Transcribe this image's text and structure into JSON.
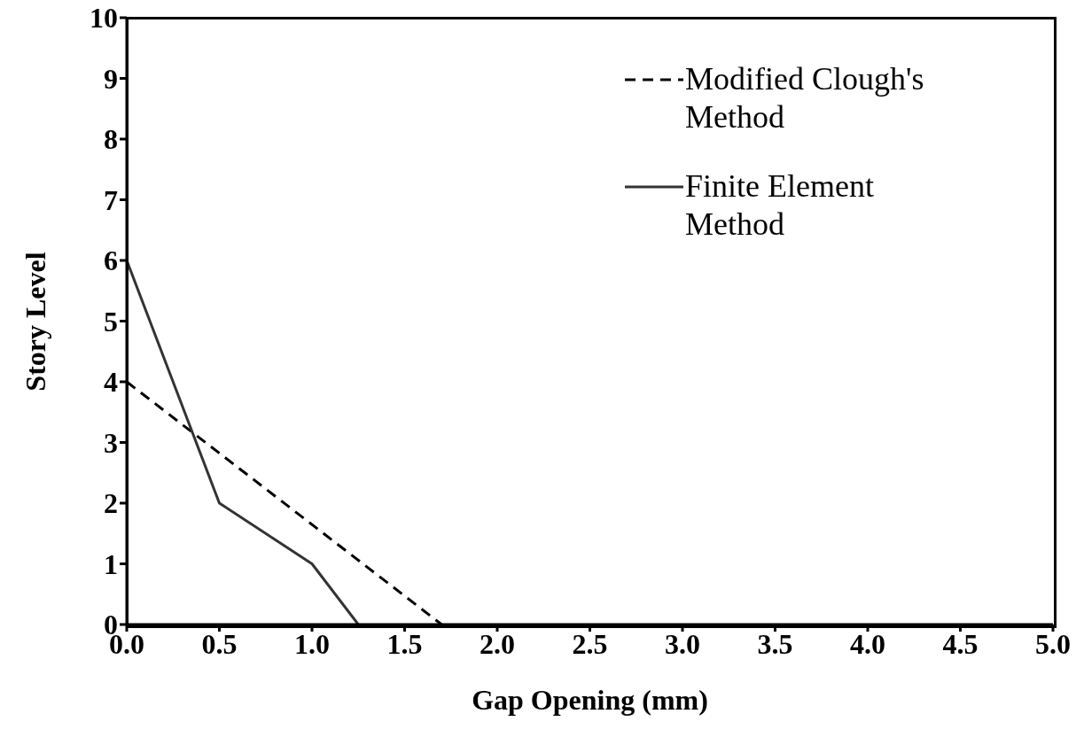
{
  "chart_data": {
    "type": "line",
    "xlabel": "Gap Opening (mm)",
    "ylabel": "Story Level",
    "xlim": [
      0,
      5
    ],
    "xticks": [
      {
        "value": 0,
        "label": "0.0"
      },
      {
        "value": 0.5,
        "label": "0.5"
      },
      {
        "value": 1,
        "label": "1.0"
      },
      {
        "value": 1.5,
        "label": "1.5"
      },
      {
        "value": 2,
        "label": "2.0"
      },
      {
        "value": 2.5,
        "label": "2.5"
      },
      {
        "value": 3,
        "label": "3.0"
      },
      {
        "value": 3.5,
        "label": "3.5"
      },
      {
        "value": 4,
        "label": "4.0"
      },
      {
        "value": 4.5,
        "label": "4.5"
      },
      {
        "value": 5,
        "label": "5.0"
      }
    ],
    "ylim": [
      0,
      10
    ],
    "yticks": [
      0,
      1,
      2,
      3,
      4,
      5,
      6,
      7,
      8,
      9,
      10
    ],
    "series": [
      {
        "name": "Modified Clough's Method",
        "color": "#000000",
        "line_style": "dashed",
        "x": [
          0,
          1.7
        ],
        "values": [
          4,
          0
        ]
      },
      {
        "name": "Finite Element Method",
        "color": "#333333",
        "line_style": "solid",
        "x": [
          0,
          0.5,
          1,
          1.25
        ],
        "values": [
          6,
          2,
          1,
          0
        ]
      }
    ],
    "legend": "top right",
    "marker": "none"
  }
}
